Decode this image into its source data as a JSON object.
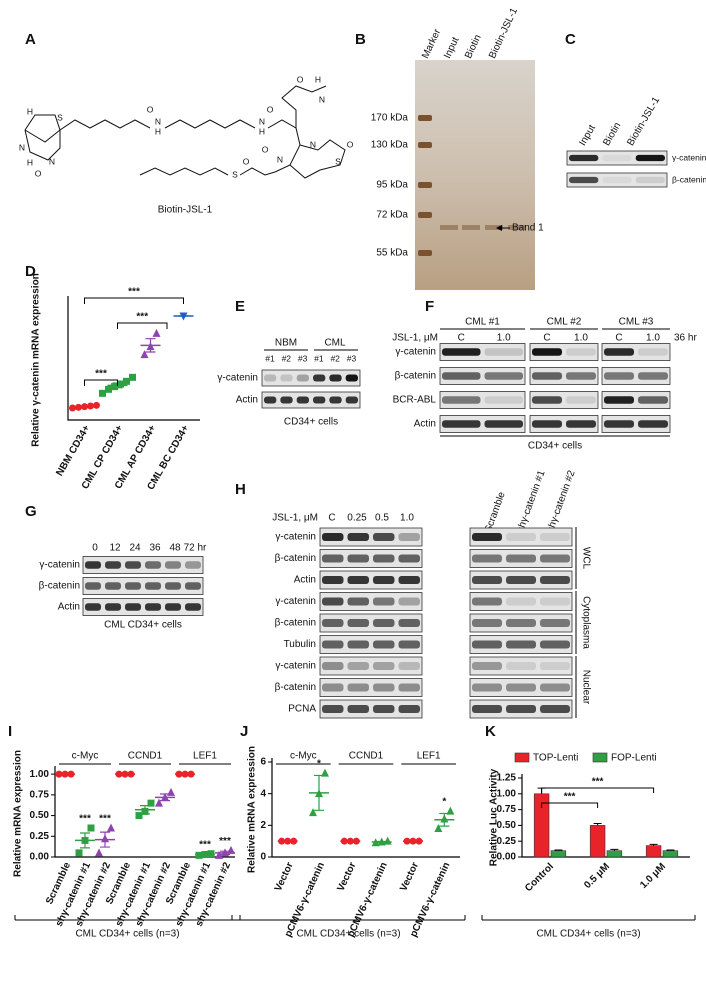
{
  "panel_a": {
    "letter": "A",
    "compound": "Biotin-JSL-1",
    "atoms": [
      "H",
      "H",
      "N",
      "N",
      "O",
      "S",
      "N",
      "H",
      "O",
      "N",
      "H",
      "O",
      "N",
      "O",
      "H",
      "N",
      "O",
      "S",
      "N",
      "O",
      "S",
      "O"
    ]
  },
  "panel_b": {
    "letter": "B",
    "lanes": [
      "Marker",
      "Input",
      "Biotin",
      "Biotin-JSL-1"
    ],
    "markers": [
      "170 kDa",
      "130 kDa",
      "95 kDa",
      "72 kDa",
      "55 kDa"
    ],
    "band": "Band 1"
  },
  "panel_c": {
    "letter": "C",
    "lanes": [
      "Input",
      "Biotin",
      "Biotin-JSL-1"
    ],
    "rows": [
      "γ-catenin",
      "β-catenin"
    ]
  },
  "panel_e": {
    "letter": "E",
    "groups": [
      "NBM",
      "CML"
    ],
    "lanes": [
      "#1",
      "#2",
      "#3",
      "#1",
      "#2",
      "#3"
    ],
    "rows": [
      "γ-catenin",
      "Actin"
    ],
    "footer": "CD34+ cells"
  },
  "panel_f": {
    "letter": "F",
    "groups": [
      "CML #1",
      "CML #2",
      "CML #3"
    ],
    "treatment": "JSL-1, μM",
    "doses": [
      "C",
      "1.0",
      "C",
      "1.0",
      "C",
      "1.0"
    ],
    "time": "36 hr",
    "rows": [
      "γ-catenin",
      "β-catenin",
      "BCR-ABL",
      "Actin"
    ],
    "footer": "CD34+ cells"
  },
  "panel_g": {
    "letter": "G",
    "times": [
      "0",
      "12",
      "24",
      "36",
      "48",
      "72 hr"
    ],
    "rows": [
      "γ-catenin",
      "β-catenin",
      "Actin"
    ],
    "footer": "CML CD34+ cells"
  },
  "panel_h": {
    "letter": "H",
    "treatment": "JSL-1, μM",
    "doses": [
      "C",
      "0.25",
      "0.5",
      "1.0"
    ],
    "knockdowns": [
      "Scramble",
      "shγ-catenin #1",
      "shγ-catenin #2"
    ],
    "rows": [
      "γ-catenin",
      "β-catenin",
      "Actin",
      "γ-catenin",
      "β-catenin",
      "Tubulin",
      "γ-catenin",
      "β-catenin",
      "PCNA"
    ],
    "fractions": [
      "WCL",
      "Cytoplasma",
      "Nuclear"
    ]
  },
  "chart_data": [
    {
      "type": "dotplot",
      "label": "D",
      "ylabel": "Relative γ-catenin mRNA expression",
      "categories": [
        "NBM CD34+",
        "CML CP CD34+",
        "CML AP CD34+",
        "CML BC CD34+"
      ],
      "colors": [
        "#e8242a",
        "#2ea043",
        "#8e44ad",
        "#1f5fbf"
      ],
      "markers": [
        "circle",
        "square",
        "triangle",
        "triangle-down"
      ],
      "points": [
        [
          0.9,
          0.95,
          1.0,
          1.05,
          1.1
        ],
        [
          2.0,
          2.3,
          2.5,
          2.7,
          2.9,
          3.2
        ],
        [
          4.9,
          5.5,
          6.5
        ],
        [
          7.8
        ]
      ],
      "means": [
        1.0,
        2.6,
        5.6,
        7.8
      ],
      "errors": [
        0.04,
        0.18,
        0.5,
        0
      ],
      "significance": [
        "***",
        "***",
        "***"
      ],
      "ylim": [
        0,
        9
      ]
    },
    {
      "type": "dotplot",
      "label": "I",
      "ylabel": "Relative mRNA expression",
      "groups": [
        "c-Myc",
        "CCND1",
        "LEF1"
      ],
      "categories": [
        "Scramble",
        "shγ-catenin #1",
        "shγ-catenin #2",
        "Scramble",
        "shγ-catenin #1",
        "shγ-catenin #2",
        "Scramble",
        "shγ-catenin #1",
        "shγ-catenin #2"
      ],
      "colors": [
        "#e8242a",
        "#2ea043",
        "#8e44ad",
        "#e8242a",
        "#2ea043",
        "#8e44ad",
        "#e8242a",
        "#2ea043",
        "#8e44ad"
      ],
      "markers": [
        "circle",
        "square",
        "triangle",
        "circle",
        "square",
        "triangle",
        "circle",
        "square",
        "triangle"
      ],
      "points": [
        [
          1,
          1,
          1
        ],
        [
          0.05,
          0.2,
          0.35
        ],
        [
          0.05,
          0.22,
          0.35
        ],
        [
          1,
          1,
          1
        ],
        [
          0.5,
          0.55,
          0.65
        ],
        [
          0.65,
          0.72,
          0.78
        ],
        [
          1,
          1,
          1
        ],
        [
          0.02,
          0.03,
          0.04
        ],
        [
          0.02,
          0.05,
          0.08
        ]
      ],
      "means": [
        1,
        0.2,
        0.21,
        1,
        0.57,
        0.72,
        1,
        0.03,
        0.05
      ],
      "errors": [
        0,
        0.09,
        0.09,
        0,
        0.05,
        0.04,
        0,
        0.01,
        0.02
      ],
      "significance": [
        null,
        "***",
        "***",
        null,
        null,
        null,
        null,
        "***",
        "***"
      ],
      "ylim": [
        0,
        1.05
      ],
      "yticks": [
        {
          "value": 0,
          "label": "0.00"
        },
        {
          "value": 0.25,
          "label": "0.25"
        },
        {
          "value": 0.5,
          "label": "0.50"
        },
        {
          "value": 0.75,
          "label": "0.75"
        },
        {
          "value": 1,
          "label": "1.00"
        }
      ],
      "footer": "CML CD34+ cells (n=3)"
    },
    {
      "type": "dotplot",
      "label": "J",
      "ylabel": "Relative mRNA expression",
      "groups": [
        "c-Myc",
        "CCND1",
        "LEF1"
      ],
      "categories": [
        "Vector",
        "pCMV6-γ-catenin",
        "Vector",
        "pCMV6-γ-catenin",
        "Vector",
        "pCMV6-γ-catenin"
      ],
      "colors": [
        "#e8242a",
        "#2ea043",
        "#e8242a",
        "#2ea043",
        "#e8242a",
        "#2ea043"
      ],
      "markers": [
        "circle",
        "triangle",
        "circle",
        "triangle",
        "circle",
        "triangle"
      ],
      "points": [
        [
          1,
          1,
          1
        ],
        [
          2.8,
          4.0,
          5.3
        ],
        [
          1,
          1,
          1
        ],
        [
          0.9,
          0.95,
          1.0
        ],
        [
          1,
          1,
          1
        ],
        [
          1.8,
          2.4,
          2.9
        ]
      ],
      "means": [
        1,
        4.05,
        1,
        0.95,
        1,
        2.35
      ],
      "errors": [
        0,
        1.1,
        0,
        0.03,
        0,
        0.4
      ],
      "significance": [
        null,
        "*",
        null,
        null,
        null,
        "*"
      ],
      "ylim": [
        0,
        6
      ],
      "yticks": [
        0,
        2,
        4,
        6
      ],
      "footer": "CML CD34+ cells (n=3)"
    },
    {
      "type": "bar",
      "label": "K",
      "ylabel": "Relative Luc Activity",
      "categories": [
        "Control",
        "0.5 μM",
        "1.0 μM"
      ],
      "series": [
        {
          "name": "TOP-Lenti",
          "color": "#e8242a",
          "values": [
            1.0,
            0.5,
            0.18
          ],
          "errors": [
            0.09,
            0.03,
            0.02
          ]
        },
        {
          "name": "FOP-Lenti",
          "color": "#2ea043",
          "values": [
            0.1,
            0.1,
            0.1
          ],
          "errors": [
            0.01,
            0.02,
            0.01
          ]
        }
      ],
      "significance": [
        "***",
        "***"
      ],
      "ylim": [
        0,
        1.25
      ],
      "yticks": [
        {
          "value": 0,
          "label": "0.00"
        },
        {
          "value": 0.25,
          "label": "0.25"
        },
        {
          "value": 0.5,
          "label": "0.50"
        },
        {
          "value": 0.75,
          "label": "0.75"
        },
        {
          "value": 1,
          "label": "1.00"
        },
        {
          "value": 1.25,
          "label": "1.25"
        }
      ],
      "footer": "CML CD34+ cells (n=3)"
    }
  ]
}
